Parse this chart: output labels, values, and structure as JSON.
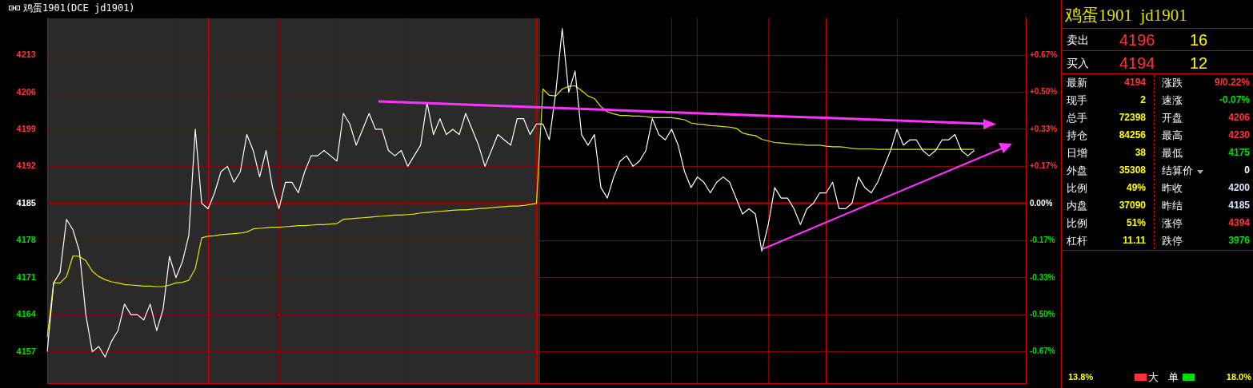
{
  "chart_data": [
    {
      "type": "line",
      "title": "鸡蛋1901(DCE jd1901)",
      "categories": [
        null,
        null,
        null,
        null,
        null,
        null,
        null,
        null,
        null,
        null,
        null,
        null,
        null,
        null,
        null,
        null,
        null,
        null,
        null,
        null,
        null,
        null,
        null,
        null,
        null,
        null,
        null,
        null,
        null,
        null,
        null,
        null,
        null,
        null,
        null,
        null,
        null,
        null,
        null,
        null,
        null,
        null,
        null,
        null,
        null,
        null,
        null,
        null,
        null,
        null,
        null,
        null,
        null,
        null,
        null,
        null,
        null,
        null,
        null,
        null,
        null,
        null,
        null,
        null,
        null,
        null,
        null,
        null,
        null,
        null,
        null,
        null,
        null,
        null,
        null,
        null,
        null,
        null,
        null,
        null,
        null,
        null,
        null,
        null,
        null,
        null,
        null,
        null,
        null,
        null,
        null,
        null,
        null,
        null,
        null,
        null,
        null,
        null,
        null,
        null,
        null,
        null,
        null,
        null,
        null,
        null,
        null,
        null,
        null,
        null,
        null,
        null,
        null,
        null,
        null,
        null,
        null,
        null,
        null,
        null,
        null,
        null,
        null,
        null,
        null,
        null,
        null,
        null,
        null,
        null,
        null,
        null,
        null,
        null,
        null,
        null,
        null,
        null,
        null,
        null,
        null,
        null,
        null,
        null,
        null,
        null,
        null,
        null,
        null,
        null,
        null,
        null,
        null
      ],
      "series": [
        {
          "color": "#ffffff",
          "values": [
            4157,
            4170,
            4172,
            4182,
            4180,
            4176,
            4164,
            4157,
            4158,
            4156,
            4159,
            4161,
            4166,
            4164,
            4164,
            4163,
            4166,
            4161,
            4165,
            4175,
            4171,
            4174,
            4179,
            4199,
            4185,
            4184,
            4187,
            4191,
            4192,
            4189,
            4191,
            4198,
            4195,
            4190,
            4195,
            4188,
            4184,
            4189,
            4189,
            4187,
            4191,
            4194,
            4194,
            4195,
            4194,
            4193,
            4202,
            4200,
            4196,
            4199,
            4202,
            4199,
            4199,
            4195,
            4194,
            4195,
            4192,
            4194,
            4196,
            4204,
            4198,
            4201,
            4198,
            4199,
            4198,
            4202,
            4199,
            4196,
            4192,
            4195,
            4198,
            4197,
            4196,
            4201,
            4201,
            4198,
            4200,
            4200,
            4197,
            4206,
            4218,
            4206,
            4210,
            4198,
            4196,
            4198,
            4188,
            4186,
            4190,
            4193,
            4194,
            4192,
            4193,
            4195,
            4201,
            4198,
            4197,
            4199,
            4196,
            4191,
            4188,
            4190,
            4189,
            4187,
            4189,
            4190,
            4189,
            4186,
            4183,
            4184,
            4183,
            4176,
            4181,
            4188,
            4186,
            4186,
            4184,
            4181,
            4184,
            4185,
            4187,
            4187,
            4189,
            4184,
            4184,
            4185,
            4190,
            4188,
            4187,
            4189,
            4192,
            4195,
            4199,
            4196,
            4197,
            4197,
            4195,
            4194,
            4195,
            4197,
            4197,
            4198,
            4195,
            4194,
            4195,
            null,
            null,
            null,
            null,
            null,
            null,
            null,
            null
          ]
        },
        {
          "color": "#e6e600",
          "values": [
            4159.7,
            4170,
            4170,
            4171.2,
            4175.1,
            4175,
            4174.2,
            4172.2,
            4171.2,
            4170.6,
            4170.2,
            4170,
            4169.7,
            4169.6,
            4169.5,
            4169.4,
            4169.4,
            4169.3,
            4169.3,
            4169.6,
            4170,
            4170.1,
            4170.5,
            4172.7,
            4178.5,
            4178.8,
            4178.9,
            4179.1,
            4179.2,
            4179.3,
            4179.4,
            4179.6,
            4180.2,
            4180.3,
            4180.4,
            4180.5,
            4180.5,
            4180.6,
            4180.7,
            4180.8,
            4180.8,
            4180.9,
            4181,
            4181,
            4181.1,
            4181.2,
            4182,
            4182.1,
            4182.2,
            4182.3,
            4182.4,
            4182.5,
            4182.6,
            4182.7,
            4182.8,
            4182.8,
            4182.9,
            4183,
            4183.2,
            4183.3,
            4183.4,
            4183.5,
            4183.6,
            4183.7,
            4183.8,
            4183.8,
            4183.9,
            4184,
            4184.1,
            4184.2,
            4184.3,
            4184.4,
            4184.5,
            4184.5,
            4184.6,
            4184.8,
            4185,
            4206.6,
            4205.4,
            4205.3,
            4206.6,
            4207.1,
            4207.2,
            4206.3,
            4205.3,
            4204.8,
            4203.3,
            4202.3,
            4201.9,
            4201.6,
            4201.6,
            4201.5,
            4201.5,
            4201.4,
            4201.2,
            4201.2,
            4201.2,
            4201.2,
            4201,
            4200.8,
            4200.2,
            4200,
            4199.9,
            4199.7,
            4199.6,
            4199.5,
            4199.4,
            4199.2,
            4198.3,
            4198,
            4197.8,
            4197.1,
            4196.8,
            4196.5,
            4196.4,
            4196.3,
            4196.2,
            4196.1,
            4196,
            4196,
            4196,
            4195.8,
            4195.7,
            4195.7,
            4195.6,
            4195.4,
            4195.3,
            4195.3,
            4195.3,
            4195.2,
            4195.2,
            4195.2,
            4195.2,
            4195.2,
            4195.2,
            4195.2,
            4195.2,
            4195.2,
            4195.2,
            4195.2,
            4195.2,
            4195.2,
            4195.2,
            4195.2,
            4195.2,
            null,
            null,
            null,
            null,
            null,
            null,
            null,
            null
          ]
        }
      ],
      "ylim": [
        4151,
        4220
      ],
      "yticks": [
        4157,
        4164,
        4171,
        4178,
        4185,
        4192,
        4199,
        4206,
        4213
      ],
      "y2lim": [
        -0.812,
        0.836
      ],
      "y2ticks": [
        {
          "value": -0.669,
          "label": "-0.67%"
        },
        {
          "value": -0.502,
          "label": "-0.50%"
        },
        {
          "value": -0.335,
          "label": "-0.33%"
        },
        {
          "value": -0.167,
          "label": "-0.17%"
        },
        {
          "value": 0,
          "label": "0.00%"
        },
        {
          "value": 0.167,
          "label": "+0.17%"
        },
        {
          "value": 0.335,
          "label": "+0.33%"
        },
        {
          "value": 0.502,
          "label": "+0.50%"
        },
        {
          "value": 0.669,
          "label": "+0.67%"
        }
      ],
      "ref_lines": [
        {
          "axis": "y",
          "value": 4185,
          "color": "#990000"
        }
      ],
      "grid": true,
      "legend": false,
      "marker": "none",
      "line_style": "solid"
    },
    {
      "type": "other",
      "title": "鸡蛋1901  jd1901",
      "annotations": [
        "卖出",
        "4196",
        "16",
        "买入",
        "4194",
        "12",
        "最新",
        "4194",
        "涨跌",
        "9/0.22%",
        "现手",
        "2",
        "速涨",
        "-0.07%",
        "总手",
        "72398",
        "开盘",
        "4206",
        "持仓",
        "84256",
        "最高",
        "4230",
        "日增",
        "38",
        "最低",
        "4175",
        "外盘",
        "35308",
        "结算价",
        "0",
        "比例",
        "49%",
        "昨收",
        "4200",
        "内盘",
        "37090",
        "昨结",
        "4185",
        "比例",
        "51%",
        "涨停",
        "4394",
        "杠杆",
        "11.11",
        "跌停",
        "3976",
        "13.8%",
        "大",
        "单",
        "18.0%"
      ]
    }
  ]
}
